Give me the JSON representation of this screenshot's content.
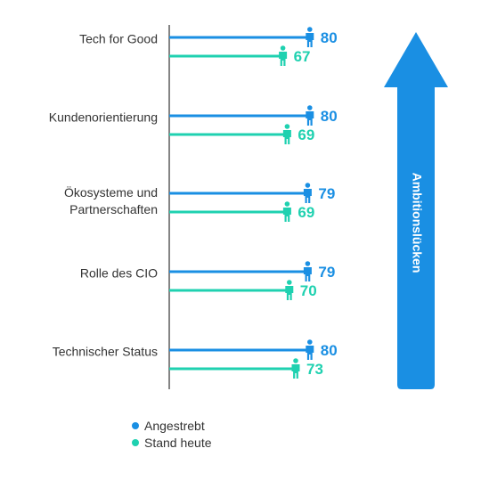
{
  "chart_data": {
    "type": "bar",
    "orientation": "horizontal",
    "categories": [
      [
        "Tech for Good"
      ],
      [
        "Kundenorientierung"
      ],
      [
        "Ökosysteme und",
        "Partnerschaften"
      ],
      [
        "Rolle des CIO"
      ],
      [
        "Technischer Status"
      ]
    ],
    "series": [
      {
        "name": "Angestrebt",
        "color": "#1a8fe3",
        "values": [
          80,
          80,
          79,
          79,
          80
        ]
      },
      {
        "name": "Stand heute",
        "color": "#1fd1b0",
        "values": [
          67,
          69,
          69,
          70,
          73
        ]
      }
    ],
    "xlim": [
      0,
      81
    ],
    "grid": false,
    "legend_position": "bottom-left",
    "marker_icon": "person-icon",
    "arrow": {
      "label": "Ambitionslücken",
      "color": "#1a8fe3",
      "direction": "up"
    }
  }
}
